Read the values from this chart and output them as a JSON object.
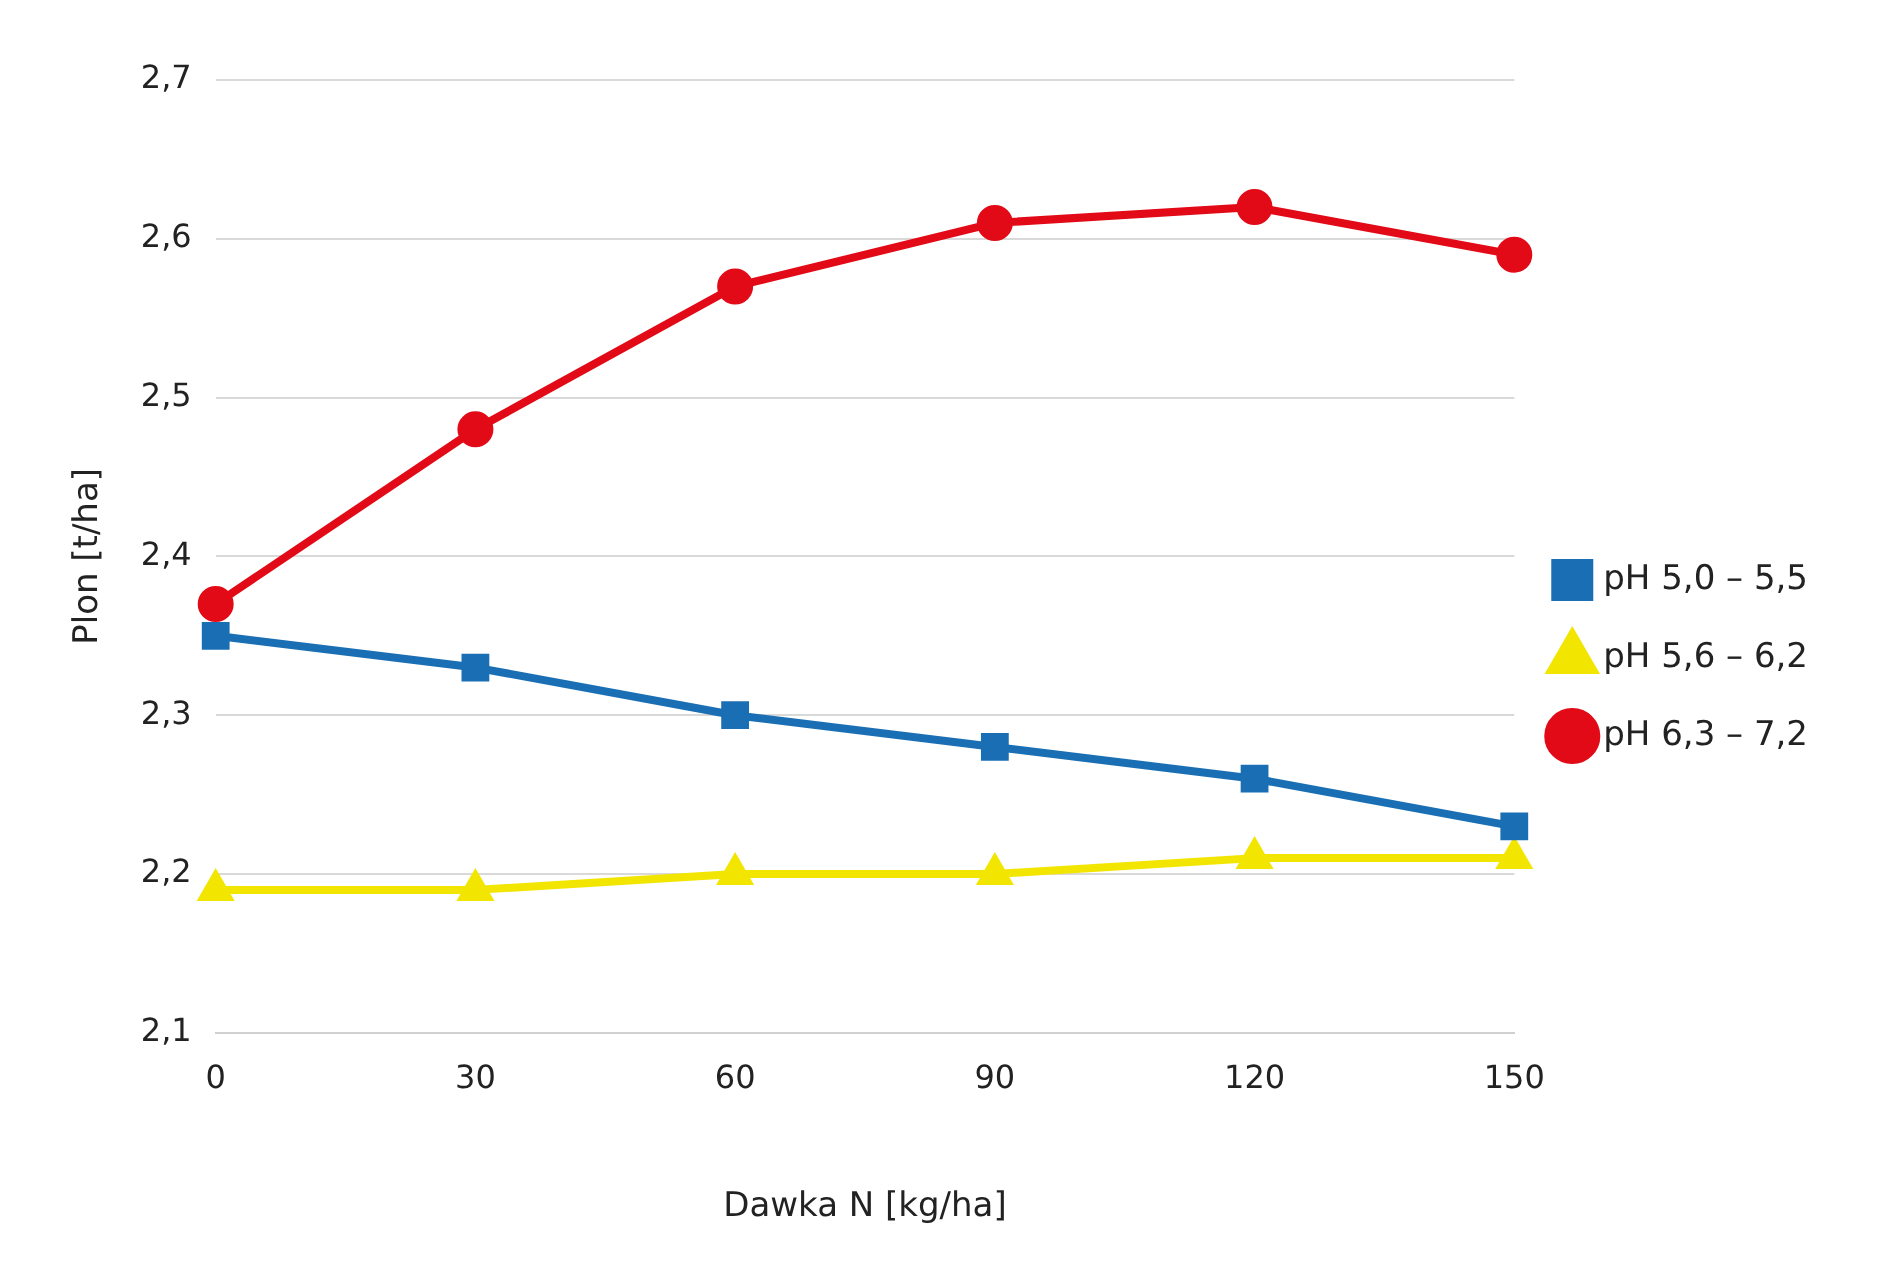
{
  "chart_data": {
    "type": "line",
    "xlabel": "Dawka N [kg/ha]",
    "ylabel": "Plon [t/ha]",
    "categories": [
      "0",
      "30",
      "60",
      "90",
      "120",
      "150"
    ],
    "series": [
      {
        "name": "pH 5,0 – 5,5",
        "color": "#1a6fb4",
        "marker": "square",
        "values": [
          2.35,
          2.33,
          2.3,
          2.28,
          2.26,
          2.23
        ]
      },
      {
        "name": "pH 5,6 – 6,2",
        "color": "#f2e500",
        "marker": "triangle",
        "values": [
          2.19,
          2.19,
          2.2,
          2.2,
          2.21,
          2.21
        ]
      },
      {
        "name": "pH 6,3 – 7,2",
        "color": "#e20a17",
        "marker": "circle",
        "values": [
          2.37,
          2.48,
          2.57,
          2.61,
          2.62,
          2.59
        ]
      }
    ],
    "ylim": [
      2.1,
      2.7
    ],
    "yticks": [
      {
        "value": 2.1,
        "label": "2,1"
      },
      {
        "value": 2.2,
        "label": "2,2"
      },
      {
        "value": 2.3,
        "label": "2,3"
      },
      {
        "value": 2.4,
        "label": "2,4"
      },
      {
        "value": 2.5,
        "label": "2,5"
      },
      {
        "value": 2.6,
        "label": "2,6"
      },
      {
        "value": 2.7,
        "label": "2,7"
      }
    ],
    "grid": "y",
    "legend": "right"
  }
}
